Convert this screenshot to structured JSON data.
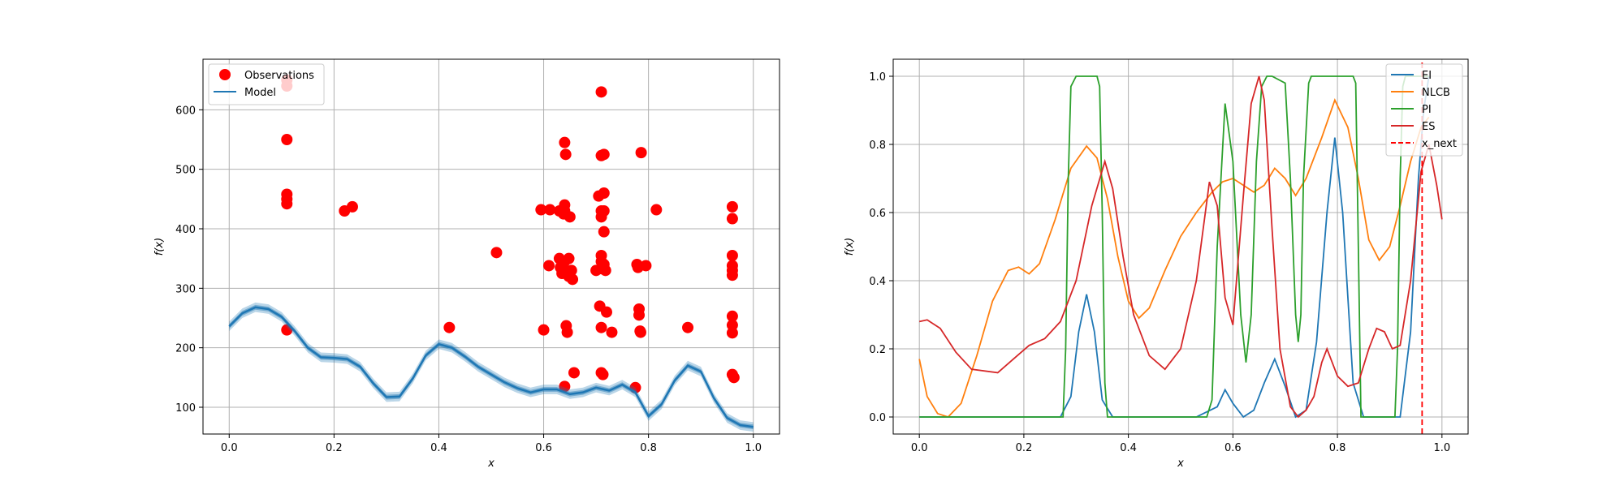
{
  "chart_data": [
    {
      "type": "scatter",
      "title": "",
      "xlabel": "x",
      "ylabel": "f(x)",
      "xlim": [
        -0.05,
        1.05
      ],
      "ylim": [
        55,
        685
      ],
      "grid": true,
      "legend_position": "top-left",
      "xticks": [
        0.0,
        0.2,
        0.4,
        0.6,
        0.8,
        1.0
      ],
      "xtick_labels": [
        "0.0",
        "0.2",
        "0.4",
        "0.6",
        "0.8",
        "1.0"
      ],
      "yticks": [
        100,
        200,
        300,
        400,
        500,
        600
      ],
      "ytick_labels": [
        "100",
        "200",
        "300",
        "400",
        "500",
        "600"
      ],
      "colors": {
        "observations": "#ff0000",
        "model": "#1f77b4"
      },
      "series": [
        {
          "name": "Observations",
          "kind": "scatter",
          "points": [
            [
              0.11,
              650
            ],
            [
              0.11,
              640
            ],
            [
              0.11,
              550
            ],
            [
              0.11,
              458
            ],
            [
              0.11,
              450
            ],
            [
              0.11,
              442
            ],
            [
              0.11,
              230
            ],
            [
              0.22,
              430
            ],
            [
              0.235,
              437
            ],
            [
              0.42,
              234
            ],
            [
              0.51,
              360
            ],
            [
              0.595,
              432
            ],
            [
              0.6,
              230
            ],
            [
              0.61,
              338
            ],
            [
              0.612,
              432
            ],
            [
              0.63,
              430
            ],
            [
              0.63,
              350
            ],
            [
              0.632,
              335
            ],
            [
              0.635,
              325
            ],
            [
              0.638,
              425
            ],
            [
              0.64,
              545
            ],
            [
              0.64,
              440
            ],
            [
              0.64,
              430
            ],
            [
              0.64,
              345
            ],
            [
              0.64,
              330
            ],
            [
              0.64,
              135
            ],
            [
              0.642,
              525
            ],
            [
              0.643,
              237
            ],
            [
              0.645,
              226
            ],
            [
              0.648,
              350
            ],
            [
              0.648,
              320
            ],
            [
              0.65,
              420
            ],
            [
              0.653,
              330
            ],
            [
              0.655,
              315
            ],
            [
              0.658,
              158
            ],
            [
              0.7,
              330
            ],
            [
              0.705,
              455
            ],
            [
              0.707,
              270
            ],
            [
              0.71,
              630
            ],
            [
              0.71,
              523
            ],
            [
              0.71,
              430
            ],
            [
              0.71,
              420
            ],
            [
              0.71,
              355
            ],
            [
              0.71,
              345
            ],
            [
              0.71,
              333
            ],
            [
              0.71,
              234
            ],
            [
              0.71,
              158
            ],
            [
              0.713,
              155
            ],
            [
              0.715,
              525
            ],
            [
              0.715,
              460
            ],
            [
              0.715,
              395
            ],
            [
              0.715,
              430
            ],
            [
              0.715,
              340
            ],
            [
              0.718,
              330
            ],
            [
              0.72,
              260
            ],
            [
              0.73,
              226
            ],
            [
              0.775,
              133
            ],
            [
              0.778,
              340
            ],
            [
              0.78,
              335
            ],
            [
              0.782,
              265
            ],
            [
              0.782,
              255
            ],
            [
              0.784,
              228
            ],
            [
              0.785,
              226
            ],
            [
              0.786,
              528
            ],
            [
              0.795,
              338
            ],
            [
              0.815,
              432
            ],
            [
              0.875,
              234
            ],
            [
              0.96,
              437
            ],
            [
              0.96,
              417
            ],
            [
              0.96,
              355
            ],
            [
              0.96,
              338
            ],
            [
              0.96,
              330
            ],
            [
              0.96,
              322
            ],
            [
              0.96,
              253
            ],
            [
              0.96,
              238
            ],
            [
              0.96,
              225
            ],
            [
              0.96,
              155
            ],
            [
              0.963,
              150
            ]
          ]
        },
        {
          "name": "Model",
          "kind": "line",
          "x": [
            0.0,
            0.025,
            0.05,
            0.075,
            0.1,
            0.125,
            0.15,
            0.175,
            0.2,
            0.225,
            0.25,
            0.275,
            0.3,
            0.325,
            0.35,
            0.375,
            0.4,
            0.425,
            0.45,
            0.475,
            0.5,
            0.525,
            0.55,
            0.575,
            0.6,
            0.625,
            0.65,
            0.675,
            0.7,
            0.725,
            0.75,
            0.775,
            0.8,
            0.825,
            0.85,
            0.875,
            0.9,
            0.925,
            0.95,
            0.975,
            1.0
          ],
          "y": [
            236,
            258,
            268,
            265,
            252,
            228,
            200,
            184,
            183,
            181,
            168,
            140,
            117,
            118,
            148,
            187,
            206,
            200,
            185,
            168,
            155,
            142,
            132,
            125,
            130,
            130,
            122,
            125,
            133,
            128,
            138,
            125,
            85,
            105,
            145,
            170,
            160,
            115,
            82,
            70,
            67
          ],
          "band": 8
        }
      ]
    },
    {
      "type": "line",
      "title": "",
      "xlabel": "x",
      "ylabel": "f(x)",
      "xlim": [
        -0.05,
        1.05
      ],
      "ylim": [
        -0.05,
        1.05
      ],
      "grid": true,
      "legend_position": "top-right",
      "xticks": [
        0.0,
        0.2,
        0.4,
        0.6,
        0.8,
        1.0
      ],
      "xtick_labels": [
        "0.0",
        "0.2",
        "0.4",
        "0.6",
        "0.8",
        "1.0"
      ],
      "yticks": [
        0.0,
        0.2,
        0.4,
        0.6,
        0.8,
        1.0
      ],
      "ytick_labels": [
        "0.0",
        "0.2",
        "0.4",
        "0.6",
        "0.8",
        "1.0"
      ],
      "x_next": 0.962,
      "series": [
        {
          "name": "EI",
          "color": "#1f77b4",
          "x": [
            0.0,
            0.27,
            0.29,
            0.305,
            0.32,
            0.335,
            0.35,
            0.37,
            0.53,
            0.57,
            0.585,
            0.6,
            0.62,
            0.64,
            0.66,
            0.68,
            0.7,
            0.72,
            0.74,
            0.76,
            0.78,
            0.795,
            0.81,
            0.83,
            0.85,
            0.92,
            0.94,
            0.955,
            0.965,
            0.975
          ],
          "y": [
            0,
            0,
            0.06,
            0.25,
            0.36,
            0.25,
            0.05,
            0,
            0,
            0.03,
            0.08,
            0.04,
            0.0,
            0.02,
            0.1,
            0.17,
            0.09,
            0.0,
            0.02,
            0.22,
            0.6,
            0.82,
            0.6,
            0.1,
            0,
            0,
            0.25,
            0.7,
            0.9,
            1.0
          ]
        },
        {
          "name": "NLCB",
          "color": "#ff7f0e",
          "x": [
            0.0,
            0.015,
            0.035,
            0.055,
            0.08,
            0.11,
            0.14,
            0.17,
            0.19,
            0.21,
            0.23,
            0.26,
            0.29,
            0.32,
            0.34,
            0.36,
            0.38,
            0.4,
            0.42,
            0.44,
            0.47,
            0.5,
            0.53,
            0.56,
            0.58,
            0.6,
            0.62,
            0.64,
            0.66,
            0.68,
            0.7,
            0.72,
            0.74,
            0.77,
            0.795,
            0.82,
            0.84,
            0.86,
            0.88,
            0.9,
            0.92,
            0.94,
            0.96,
            0.975
          ],
          "y": [
            0.17,
            0.06,
            0.01,
            0.0,
            0.04,
            0.18,
            0.34,
            0.43,
            0.44,
            0.42,
            0.45,
            0.58,
            0.73,
            0.795,
            0.76,
            0.64,
            0.47,
            0.34,
            0.29,
            0.32,
            0.43,
            0.53,
            0.6,
            0.66,
            0.69,
            0.7,
            0.68,
            0.66,
            0.68,
            0.73,
            0.7,
            0.65,
            0.7,
            0.82,
            0.93,
            0.85,
            0.7,
            0.52,
            0.46,
            0.5,
            0.62,
            0.75,
            0.85,
            0.88
          ]
        },
        {
          "name": "PI",
          "color": "#2ca02c",
          "x": [
            0.0,
            0.275,
            0.28,
            0.285,
            0.29,
            0.3,
            0.34,
            0.345,
            0.35,
            0.355,
            0.36,
            0.55,
            0.56,
            0.57,
            0.585,
            0.6,
            0.615,
            0.625,
            0.635,
            0.645,
            0.655,
            0.665,
            0.675,
            0.7,
            0.71,
            0.72,
            0.725,
            0.73,
            0.735,
            0.745,
            0.75,
            0.755,
            0.83,
            0.835,
            0.84,
            0.845,
            0.91,
            0.915,
            0.92,
            0.925,
            0.93,
            0.96,
            0.975
          ],
          "y": [
            0,
            0,
            0.2,
            0.7,
            0.97,
            1.0,
            1.0,
            0.97,
            0.6,
            0.1,
            0,
            0,
            0.05,
            0.5,
            0.92,
            0.75,
            0.3,
            0.16,
            0.3,
            0.75,
            0.97,
            1.0,
            1.0,
            0.98,
            0.7,
            0.3,
            0.22,
            0.3,
            0.7,
            0.98,
            1.0,
            1.0,
            1.0,
            0.98,
            0.5,
            0.0,
            0.0,
            0.2,
            0.7,
            0.97,
            1.0,
            1.0,
            1.0
          ]
        },
        {
          "name": "ES",
          "color": "#d62728",
          "x": [
            0.0,
            0.015,
            0.04,
            0.07,
            0.1,
            0.15,
            0.18,
            0.21,
            0.24,
            0.27,
            0.3,
            0.33,
            0.355,
            0.37,
            0.39,
            0.41,
            0.44,
            0.47,
            0.5,
            0.53,
            0.555,
            0.57,
            0.585,
            0.6,
            0.62,
            0.635,
            0.65,
            0.66,
            0.675,
            0.69,
            0.71,
            0.725,
            0.74,
            0.755,
            0.77,
            0.78,
            0.79,
            0.8,
            0.82,
            0.84,
            0.86,
            0.875,
            0.89,
            0.905,
            0.92,
            0.94,
            0.96,
            0.975,
            0.99,
            1.0
          ],
          "y": [
            0.28,
            0.285,
            0.26,
            0.19,
            0.14,
            0.13,
            0.17,
            0.21,
            0.23,
            0.28,
            0.4,
            0.62,
            0.75,
            0.67,
            0.47,
            0.3,
            0.18,
            0.14,
            0.2,
            0.4,
            0.69,
            0.62,
            0.35,
            0.27,
            0.65,
            0.92,
            1.0,
            0.93,
            0.55,
            0.2,
            0.03,
            0.0,
            0.02,
            0.06,
            0.16,
            0.2,
            0.16,
            0.12,
            0.09,
            0.1,
            0.2,
            0.26,
            0.25,
            0.2,
            0.21,
            0.4,
            0.72,
            0.8,
            0.68,
            0.58
          ]
        },
        {
          "name": "x_next",
          "color": "#ff0000",
          "dashed": true,
          "x": [
            0.962,
            0.962
          ],
          "y": [
            -0.05,
            1.05
          ]
        }
      ]
    }
  ]
}
